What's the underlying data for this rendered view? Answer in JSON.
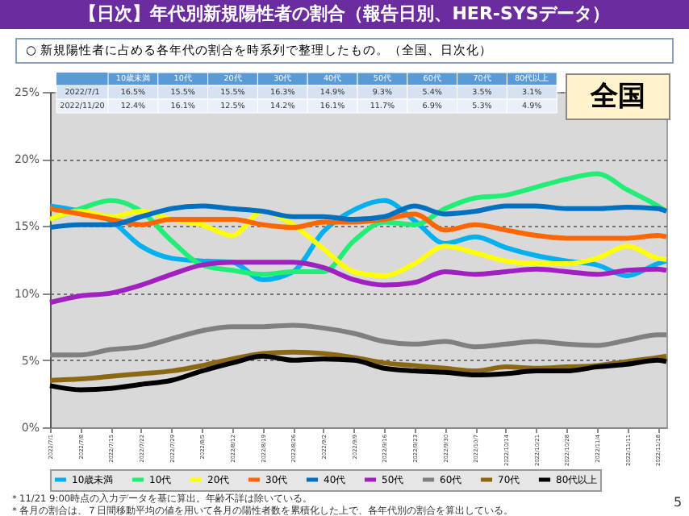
{
  "chart_data": {
    "type": "line",
    "title": "【日次】年代別新規陽性者の割合（報告日別、HER-SYSデータ）",
    "subtitle": "○ 新規陽性者に占める各年代の割合を時系列で整理したもの。（全国、日次化）",
    "x": [
      "2022-07-01",
      "2022-07-08",
      "2022-07-15",
      "2022-07-22",
      "2022-07-29",
      "2022-08-05",
      "2022-08-12",
      "2022-08-19",
      "2022-08-26",
      "2022-09-02",
      "2022-09-09",
      "2022-09-16",
      "2022-09-23",
      "2022-09-30",
      "2022-10-07",
      "2022-10-14",
      "2022-10-21",
      "2022-10-28",
      "2022-11-04",
      "2022-11-11",
      "2022-11-18",
      "2022-11-20"
    ],
    "series": [
      {
        "name": "10歳未満",
        "color": "#00b0f0",
        "values": [
          16.5,
          16.1,
          15.4,
          13.5,
          12.6,
          12.4,
          12.3,
          11.0,
          11.6,
          14.6,
          16.2,
          16.9,
          15.4,
          13.7,
          14.2,
          13.4,
          12.8,
          12.4,
          12.1,
          11.3,
          12.2,
          12.4
        ]
      },
      {
        "name": "10代",
        "color": "#22ee77",
        "values": [
          15.5,
          16.3,
          16.9,
          16.1,
          13.9,
          12.1,
          11.7,
          11.4,
          11.6,
          11.6,
          13.9,
          15.3,
          15.1,
          16.3,
          17.1,
          17.3,
          17.9,
          18.5,
          18.9,
          17.7,
          16.5,
          16.1
        ]
      },
      {
        "name": "20代",
        "color": "#ffff00",
        "values": [
          15.5,
          16.1,
          15.7,
          16.1,
          15.5,
          15.1,
          14.3,
          16.1,
          15.1,
          13.3,
          11.6,
          11.3,
          12.2,
          13.5,
          13.0,
          12.4,
          12.2,
          12.2,
          12.6,
          13.5,
          12.6,
          12.5
        ]
      },
      {
        "name": "30代",
        "color": "#ff6600",
        "values": [
          16.3,
          15.9,
          15.5,
          15.1,
          15.5,
          15.5,
          15.5,
          15.1,
          14.9,
          15.3,
          15.3,
          15.5,
          15.9,
          14.7,
          15.1,
          14.7,
          14.3,
          14.1,
          14.1,
          14.1,
          14.3,
          14.2
        ]
      },
      {
        "name": "40代",
        "color": "#0070c0",
        "values": [
          14.9,
          15.1,
          15.1,
          15.7,
          16.3,
          16.5,
          16.3,
          16.1,
          15.7,
          15.7,
          15.5,
          15.7,
          16.5,
          15.9,
          16.1,
          16.5,
          16.5,
          16.3,
          16.3,
          16.4,
          16.3,
          16.1
        ]
      },
      {
        "name": "50代",
        "color": "#a020c0",
        "values": [
          9.3,
          9.8,
          10.0,
          10.6,
          11.4,
          12.1,
          12.3,
          12.3,
          12.3,
          11.9,
          11.0,
          10.6,
          10.8,
          11.6,
          11.4,
          11.6,
          11.8,
          11.6,
          11.4,
          11.7,
          11.8,
          11.7
        ]
      },
      {
        "name": "60代",
        "color": "#808080",
        "values": [
          5.4,
          5.4,
          5.8,
          6.0,
          6.6,
          7.2,
          7.5,
          7.5,
          7.6,
          7.4,
          7.0,
          6.4,
          6.2,
          6.4,
          6.0,
          6.2,
          6.4,
          6.2,
          6.1,
          6.5,
          6.9,
          6.9
        ]
      },
      {
        "name": "70代",
        "color": "#8b6914",
        "values": [
          3.5,
          3.6,
          3.8,
          4.0,
          4.2,
          4.6,
          5.1,
          5.5,
          5.6,
          5.5,
          5.2,
          4.8,
          4.6,
          4.4,
          4.2,
          4.5,
          4.4,
          4.5,
          4.6,
          4.9,
          5.2,
          5.3
        ]
      },
      {
        "name": "80代以上",
        "color": "#000000",
        "values": [
          3.1,
          2.8,
          2.9,
          3.2,
          3.5,
          4.2,
          4.8,
          5.3,
          5.0,
          5.1,
          5.0,
          4.4,
          4.2,
          4.1,
          3.9,
          4.0,
          4.2,
          4.2,
          4.5,
          4.7,
          5.0,
          4.9
        ]
      }
    ],
    "xlim": [
      "2022-07-01",
      "2022-11-20"
    ],
    "xticks": [
      {
        "value": "2022-07-01",
        "label": "2022/7/1"
      },
      {
        "value": "2022-07-08",
        "label": "2022/7/8"
      },
      {
        "value": "2022-07-15",
        "label": "2022/7/15"
      },
      {
        "value": "2022-07-22",
        "label": "2022/7/22"
      },
      {
        "value": "2022-07-29",
        "label": "2022/7/29"
      },
      {
        "value": "2022-08-05",
        "label": "2022/8/5"
      },
      {
        "value": "2022-08-12",
        "label": "2022/8/12"
      },
      {
        "value": "2022-08-19",
        "label": "2022/8/19"
      },
      {
        "value": "2022-08-26",
        "label": "2022/8/26"
      },
      {
        "value": "2022-09-02",
        "label": "2022/9/2"
      },
      {
        "value": "2022-09-09",
        "label": "2022/9/9"
      },
      {
        "value": "2022-09-16",
        "label": "2022/9/16"
      },
      {
        "value": "2022-09-23",
        "label": "2022/9/23"
      },
      {
        "value": "2022-09-30",
        "label": "2022/9/30"
      },
      {
        "value": "2022-10-07",
        "label": "2022/10/7"
      },
      {
        "value": "2022-10-14",
        "label": "2022/10/14"
      },
      {
        "value": "2022-10-21",
        "label": "2022/10/21"
      },
      {
        "value": "2022-10-28",
        "label": "2022/10/28"
      },
      {
        "value": "2022-11-04",
        "label": "2022/11/4"
      },
      {
        "value": "2022-11-11",
        "label": "2022/11/11"
      },
      {
        "value": "2022-11-18",
        "label": "2022/11/18"
      }
    ],
    "ylim": [
      0,
      25
    ],
    "yticks": [
      {
        "value": 0,
        "label": "0%"
      },
      {
        "value": 5,
        "label": "5%"
      },
      {
        "value": 10,
        "label": "10%"
      },
      {
        "value": 15,
        "label": "15%"
      },
      {
        "value": 20,
        "label": "20%"
      },
      {
        "value": 25,
        "label": "25%"
      }
    ],
    "grid": "y",
    "legend": "bottom",
    "annotations": [
      "全国",
      "＊11/21 9:00時点の入力データを基に算出。年齢不詳は除いている。",
      "＊各月の割合は、７日間移動平均の値を用いて各月の陽性者数を累積化した上で、各年代別の割合を算出している。",
      "5",
      "2022/7/1",
      "16.5%",
      "15.5%",
      "15.5%",
      "16.3%",
      "14.9%",
      "9.3%",
      "5.4%",
      "3.5%",
      "3.1%",
      "2022/11/20",
      "12.4%",
      "16.1%",
      "12.5%",
      "14.2%",
      "16.1%",
      "11.7%",
      "6.9%",
      "5.3%",
      "4.9%"
    ]
  }
}
